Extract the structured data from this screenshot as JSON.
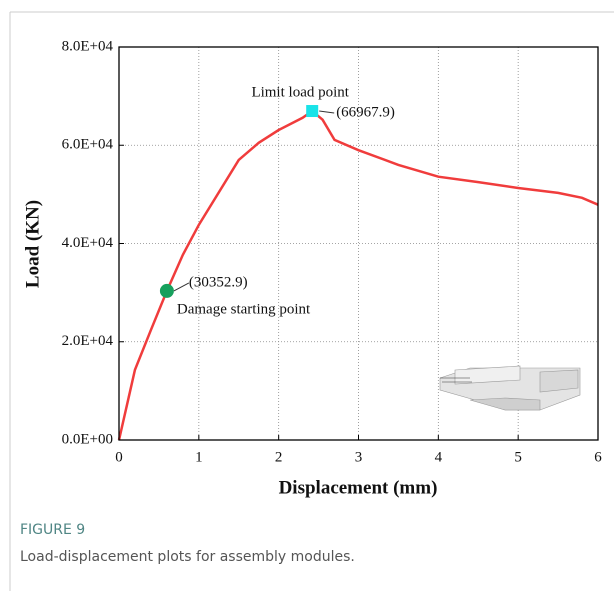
{
  "chart_data": {
    "type": "line",
    "xlabel": "Displacement (mm)",
    "ylabel": "Load  (KN)",
    "x": [
      0,
      0.2,
      0.4,
      0.6,
      0.8,
      1,
      1.5,
      1.75,
      2,
      2.3,
      2.42,
      2.55,
      2.7,
      3,
      3.5,
      4,
      4.5,
      5,
      5.5,
      5.8,
      6
    ],
    "series": [
      {
        "color": "#f03c3c",
        "values": [
          0,
          14300,
          22400,
          30352.9,
          37700,
          43800,
          57000,
          60500,
          63100,
          65600,
          66967.9,
          65200,
          61100,
          59000,
          56000,
          53600,
          52500,
          51300,
          50300,
          49300,
          47900
        ]
      }
    ],
    "markers": [
      {
        "name": "Damage starting point",
        "x": 0.6,
        "y": 30352.9,
        "value_label": "(30352.9)",
        "color": "#17a05d",
        "shape": "circle"
      },
      {
        "name": "Limit load point",
        "x": 2.42,
        "y": 66967.9,
        "value_label": "(66967.9)",
        "color": "#19e3e8",
        "shape": "square"
      }
    ],
    "xlim": [
      0,
      6
    ],
    "xticks": [
      0,
      1,
      2,
      3,
      4,
      5,
      6
    ],
    "ylim": [
      0,
      80000
    ],
    "yticks": [
      {
        "value": 0,
        "label": "0.0E+00"
      },
      {
        "value": 20000,
        "label": "2.0E+04"
      },
      {
        "value": 40000,
        "label": "4.0E+04"
      },
      {
        "value": 60000,
        "label": "6.0E+04"
      },
      {
        "value": 80000,
        "label": "8.0E+04"
      }
    ],
    "grid": true
  },
  "figure": {
    "label": "FIGURE 9",
    "caption": "Load-displacement plots for assembly modules."
  }
}
